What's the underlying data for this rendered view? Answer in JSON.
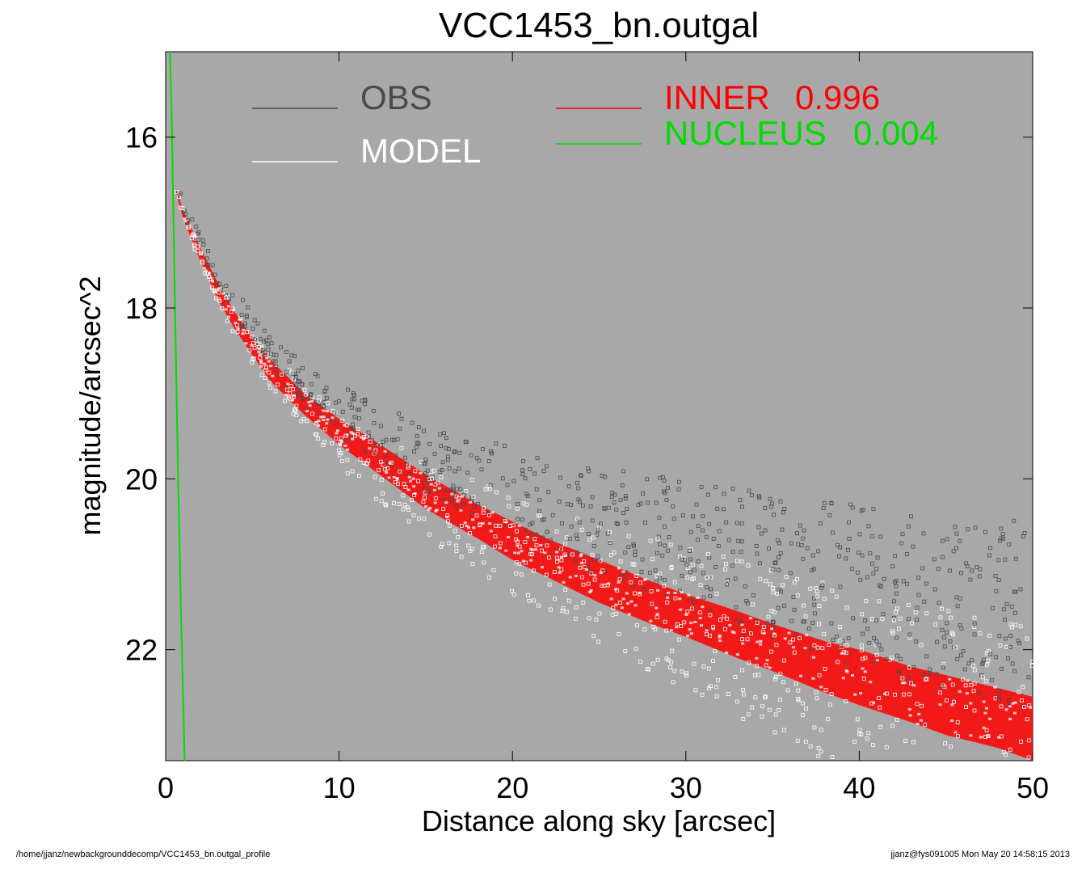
{
  "chart_data": {
    "type": "scatter",
    "title": "VCC1453_bn.outgal",
    "xlabel": "Distance along sky [arcsec]",
    "ylabel": "magnitude/arcsec^2",
    "xlim": [
      0,
      50
    ],
    "ylim": [
      15.0,
      23.3
    ],
    "y_inverted": true,
    "x_ticks": [
      0,
      10,
      20,
      30,
      40,
      50
    ],
    "y_ticks": [
      16,
      18,
      20,
      22
    ],
    "x_tick_labels": [
      "0",
      "10",
      "20",
      "30",
      "40",
      "50"
    ],
    "y_tick_labels": [
      "16",
      "18",
      "20",
      "22"
    ],
    "grid": false,
    "background": "#a8a8a8",
    "legend": {
      "placement": "top",
      "entries": [
        {
          "key": "obs",
          "label": "OBS",
          "value": "",
          "color": "#4a4a4a"
        },
        {
          "key": "model",
          "label": "MODEL",
          "value": "",
          "color": "#ffffff"
        },
        {
          "key": "inner",
          "label": "INNER",
          "value": "0.996",
          "color": "#ff0000"
        },
        {
          "key": "nucleus",
          "label": "NUCLEUS",
          "value": "0.004",
          "color": "#00dd00"
        }
      ]
    },
    "series": [
      {
        "name": "OBS",
        "kind": "scatter",
        "color": "#4a4a4a",
        "x": [
          0.6,
          1,
          2,
          3,
          4,
          5,
          6,
          8,
          10,
          12,
          15,
          18,
          20,
          22,
          25,
          28,
          30,
          33,
          35,
          38,
          40,
          43,
          45,
          48,
          50
        ],
        "y": [
          16.55,
          16.85,
          17.25,
          17.6,
          17.95,
          18.25,
          18.5,
          18.9,
          19.2,
          19.45,
          19.75,
          20.0,
          20.15,
          20.3,
          20.5,
          20.65,
          20.75,
          20.9,
          21.0,
          21.15,
          21.25,
          21.35,
          21.45,
          21.55,
          21.6
        ]
      },
      {
        "name": "MODEL",
        "kind": "scatter",
        "color": "#ffffff",
        "x": [
          0.6,
          1,
          2,
          3,
          4,
          5,
          6,
          8,
          10,
          12,
          15,
          18,
          20,
          22,
          25,
          28,
          30,
          33,
          35,
          38,
          40,
          43,
          45,
          48,
          50
        ],
        "y": [
          16.6,
          16.9,
          17.35,
          17.75,
          18.1,
          18.4,
          18.65,
          19.05,
          19.4,
          19.7,
          20.05,
          20.35,
          20.55,
          20.7,
          20.95,
          21.15,
          21.3,
          21.5,
          21.65,
          21.85,
          21.95,
          22.15,
          22.25,
          22.45,
          22.55
        ]
      },
      {
        "name": "INNER",
        "kind": "band",
        "color": "#ff0000",
        "x": [
          0.6,
          1,
          2,
          3,
          4,
          5,
          6,
          8,
          10,
          12,
          15,
          18,
          20,
          22,
          25,
          28,
          30,
          33,
          35,
          38,
          40,
          43,
          45,
          48,
          50
        ],
        "y_low": [
          16.6,
          16.85,
          17.3,
          17.7,
          18.05,
          18.35,
          18.6,
          19.0,
          19.3,
          19.55,
          19.95,
          20.3,
          20.5,
          20.7,
          20.95,
          21.2,
          21.35,
          21.55,
          21.7,
          21.9,
          22.0,
          22.2,
          22.3,
          22.45,
          22.55
        ],
        "y_high": [
          16.65,
          16.95,
          17.45,
          17.9,
          18.25,
          18.55,
          18.85,
          19.25,
          19.6,
          19.9,
          20.35,
          20.7,
          20.95,
          21.15,
          21.45,
          21.7,
          21.85,
          22.1,
          22.25,
          22.5,
          22.65,
          22.85,
          23.0,
          23.15,
          23.3
        ]
      },
      {
        "name": "NUCLEUS",
        "kind": "line",
        "color": "#00dd00",
        "x": [
          0.25,
          0.35,
          0.5,
          0.7,
          0.9,
          1.1
        ],
        "y": [
          15.0,
          15.8,
          17.5,
          19.8,
          21.7,
          23.3
        ]
      }
    ]
  },
  "footer": {
    "left": "/home/jjanz/newbackgrounddecomp/VCC1453_bn.outgal_profile",
    "right": "jjanz@fys091005  Mon May 20 14:58:15 2013"
  }
}
